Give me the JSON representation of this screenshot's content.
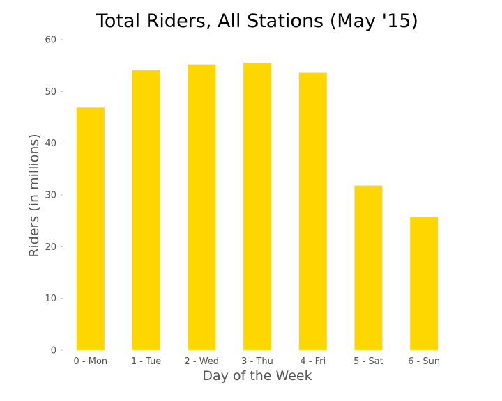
{
  "chart_data": {
    "type": "bar",
    "title": "Total Riders, All Stations (May '15)",
    "xlabel": "Day of the Week",
    "ylabel": "Riders (in millions)",
    "categories": [
      "0 - Mon",
      "1 - Tue",
      "2 - Wed",
      "3 - Thu",
      "4 - Fri",
      "5 - Sat",
      "6 - Sun"
    ],
    "values": [
      46.9,
      54.1,
      55.2,
      55.5,
      53.6,
      31.8,
      25.8
    ],
    "ylim": [
      0,
      60
    ],
    "yticks": [
      0,
      10,
      20,
      30,
      40,
      50,
      60
    ],
    "grid": false,
    "bar_color": "#ffd700"
  }
}
